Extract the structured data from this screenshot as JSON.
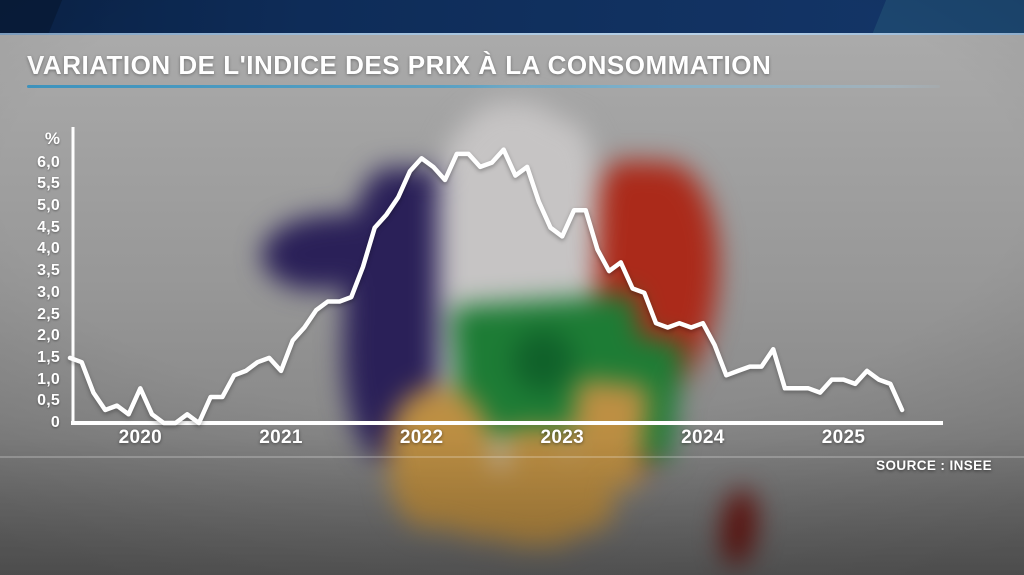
{
  "title": {
    "label": "VARIATION DE L'INDICE DES PRIX À LA CONSOMMATION"
  },
  "source": {
    "label": "SOURCE : INSEE"
  },
  "axes": {
    "unit_label": "%",
    "y_tick_labels": [
      "6,0",
      "5,5",
      "5,0",
      "4,5",
      "4,0",
      "3,5",
      "3,0",
      "2,5",
      "2,0",
      "1,5",
      "1,0",
      "0,5",
      "0"
    ],
    "x_tick_labels": [
      "2020",
      "2021",
      "2022",
      "2023",
      "2024",
      "2025"
    ]
  },
  "colors": {
    "banner_navy": "#0e2c58",
    "banner_bottom_line": "#a9c6e0",
    "title_underline_teal": "#3d93bd",
    "axis_white": "#ffffff",
    "line_white": "#ffffff",
    "flag_blue": "#2a2058",
    "flag_white": "#c6c4c4",
    "flag_red": "#ab2a1a",
    "money_green": "#1d7c35",
    "money_green_dark": "#10612a",
    "money_gold": "#bd8f43",
    "corsica_red": "#6e1510"
  },
  "chart_data": {
    "type": "line",
    "title": "VARIATION DE L'INDICE DES PRIX À LA CONSOMMATION",
    "ylabel": "%",
    "xlabel": "",
    "source": "INSEE",
    "ylim": [
      0,
      6.5
    ],
    "y_ticks": [
      0,
      0.5,
      1.0,
      1.5,
      2.0,
      2.5,
      3.0,
      3.5,
      4.0,
      4.5,
      5.0,
      5.5,
      6.0
    ],
    "grid": false,
    "legend": false,
    "x": [
      "2020-01",
      "2020-02",
      "2020-03",
      "2020-04",
      "2020-05",
      "2020-06",
      "2020-07",
      "2020-08",
      "2020-09",
      "2020-10",
      "2020-11",
      "2020-12",
      "2021-01",
      "2021-02",
      "2021-03",
      "2021-04",
      "2021-05",
      "2021-06",
      "2021-07",
      "2021-08",
      "2021-09",
      "2021-10",
      "2021-11",
      "2021-12",
      "2022-01",
      "2022-02",
      "2022-03",
      "2022-04",
      "2022-05",
      "2022-06",
      "2022-07",
      "2022-08",
      "2022-09",
      "2022-10",
      "2022-11",
      "2022-12",
      "2023-01",
      "2023-02",
      "2023-03",
      "2023-04",
      "2023-05",
      "2023-06",
      "2023-07",
      "2023-08",
      "2023-09",
      "2023-10",
      "2023-11",
      "2023-12",
      "2024-01",
      "2024-02",
      "2024-03",
      "2024-04",
      "2024-05",
      "2024-06",
      "2024-07",
      "2024-08",
      "2024-09",
      "2024-10",
      "2024-11",
      "2024-12",
      "2025-01",
      "2025-02",
      "2025-03",
      "2025-04",
      "2025-05",
      "2025-06",
      "2025-07",
      "2025-08",
      "2025-09",
      "2025-10",
      "2025-11",
      "2025-12"
    ],
    "values": [
      1.5,
      1.4,
      0.7,
      0.3,
      0.4,
      0.2,
      0.8,
      0.2,
      0.0,
      0.0,
      0.2,
      0.0,
      0.6,
      0.6,
      1.1,
      1.2,
      1.4,
      1.5,
      1.2,
      1.9,
      2.2,
      2.6,
      2.8,
      2.8,
      2.9,
      3.6,
      4.5,
      4.8,
      5.2,
      5.8,
      6.1,
      5.9,
      5.6,
      6.2,
      6.2,
      5.9,
      6.0,
      6.3,
      5.7,
      5.9,
      5.1,
      4.5,
      4.3,
      4.9,
      4.9,
      4.0,
      3.5,
      3.7,
      3.1,
      3.0,
      2.3,
      2.2,
      2.3,
      2.2,
      2.3,
      1.8,
      1.1,
      1.2,
      1.3,
      1.3,
      1.7,
      0.8,
      0.8,
      0.8,
      0.7,
      1.0,
      1.0,
      0.9,
      1.2,
      1.0,
      0.9,
      0.3
    ]
  }
}
